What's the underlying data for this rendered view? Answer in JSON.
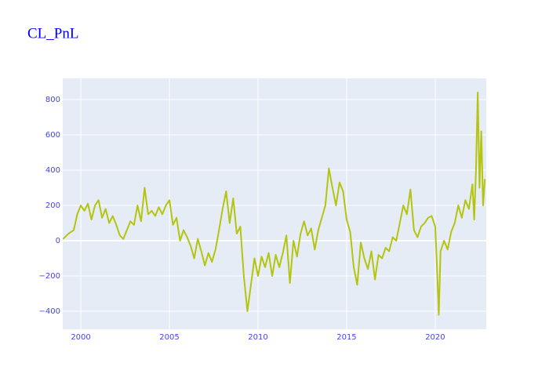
{
  "chart_data": {
    "type": "line",
    "title": "CL_PnL",
    "title_color": "#0000ff",
    "tick_color": "#4444ee",
    "plot_background": "#e5ecf6",
    "grid": true,
    "xlim": [
      1998.98,
      2022.88
    ],
    "xticks": [
      2000,
      2005,
      2010,
      2015,
      2020
    ],
    "ylim": [
      -502,
      920
    ],
    "yticks": [
      {
        "value": -400,
        "label": "−400"
      },
      {
        "value": -200,
        "label": "−200"
      },
      0,
      200,
      400,
      600,
      800
    ],
    "series": [
      {
        "color": "#b4c40f",
        "x": [
          1999.0,
          1999.3,
          1999.6,
          1999.8,
          2000.0,
          2000.2,
          2000.4,
          2000.6,
          2000.8,
          2001.0,
          2001.2,
          2001.4,
          2001.6,
          2001.8,
          2002.0,
          2002.2,
          2002.4,
          2002.6,
          2002.8,
          2003.0,
          2003.2,
          2003.4,
          2003.6,
          2003.8,
          2004.0,
          2004.2,
          2004.4,
          2004.6,
          2004.8,
          2005.0,
          2005.2,
          2005.4,
          2005.6,
          2005.8,
          2006.0,
          2006.2,
          2006.4,
          2006.6,
          2006.8,
          2007.0,
          2007.2,
          2007.4,
          2007.6,
          2007.8,
          2008.0,
          2008.2,
          2008.4,
          2008.6,
          2008.8,
          2009.0,
          2009.2,
          2009.4,
          2009.6,
          2009.8,
          2010.0,
          2010.2,
          2010.4,
          2010.6,
          2010.8,
          2011.0,
          2011.2,
          2011.4,
          2011.6,
          2011.8,
          2012.0,
          2012.2,
          2012.4,
          2012.6,
          2012.8,
          2013.0,
          2013.2,
          2013.4,
          2013.6,
          2013.8,
          2014.0,
          2014.2,
          2014.4,
          2014.6,
          2014.8,
          2015.0,
          2015.2,
          2015.4,
          2015.6,
          2015.8,
          2016.0,
          2016.2,
          2016.4,
          2016.6,
          2016.8,
          2017.0,
          2017.2,
          2017.4,
          2017.6,
          2017.8,
          2018.0,
          2018.2,
          2018.4,
          2018.6,
          2018.8,
          2019.0,
          2019.2,
          2019.4,
          2019.6,
          2019.8,
          2020.0,
          2020.1,
          2020.2,
          2020.3,
          2020.5,
          2020.7,
          2020.9,
          2021.1,
          2021.3,
          2021.5,
          2021.7,
          2021.9,
          2022.1,
          2022.2,
          2022.3,
          2022.4,
          2022.5,
          2022.6,
          2022.7,
          2022.8
        ],
        "values": [
          10,
          40,
          60,
          150,
          200,
          170,
          210,
          120,
          200,
          230,
          130,
          180,
          100,
          140,
          90,
          30,
          10,
          60,
          110,
          90,
          200,
          110,
          300,
          150,
          170,
          140,
          190,
          150,
          200,
          230,
          90,
          130,
          0,
          60,
          20,
          -30,
          -100,
          10,
          -60,
          -140,
          -70,
          -120,
          -50,
          60,
          180,
          280,
          100,
          240,
          40,
          80,
          -200,
          -400,
          -250,
          -100,
          -200,
          -90,
          -150,
          -70,
          -200,
          -80,
          -150,
          -70,
          30,
          -240,
          0,
          -90,
          40,
          110,
          30,
          70,
          -50,
          60,
          130,
          200,
          410,
          300,
          200,
          330,
          280,
          120,
          50,
          -150,
          -250,
          -10,
          -100,
          -160,
          -60,
          -220,
          -80,
          -100,
          -40,
          -60,
          20,
          0,
          100,
          200,
          150,
          290,
          60,
          20,
          80,
          100,
          130,
          140,
          80,
          -150,
          -420,
          -60,
          0,
          -50,
          50,
          100,
          200,
          130,
          230,
          180,
          320,
          120,
          400,
          840,
          300,
          620,
          200,
          350
        ]
      }
    ]
  }
}
